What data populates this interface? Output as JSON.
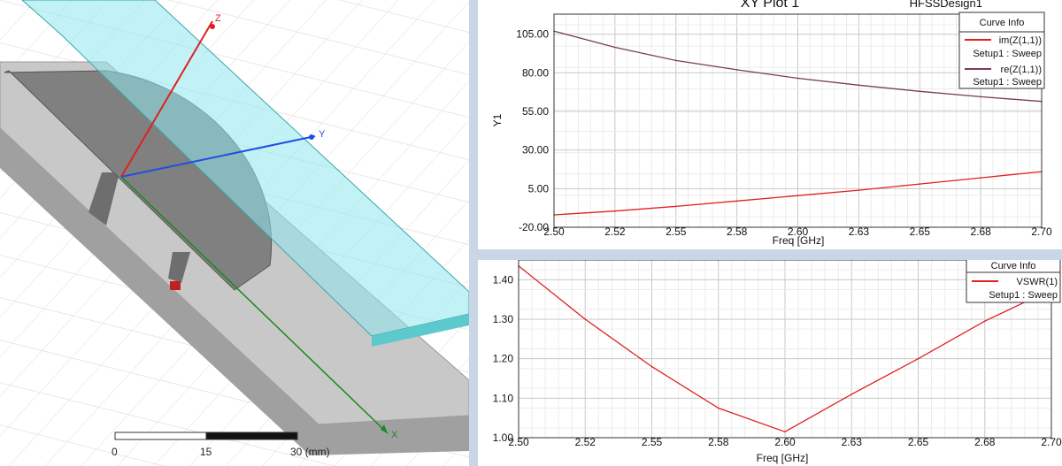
{
  "viewport": {
    "axes": {
      "x": "X",
      "y": "Y",
      "z": "Z"
    },
    "scale_bar": {
      "ticks": [
        "0",
        "15",
        "30 (mm)"
      ]
    },
    "colors": {
      "x_axis": "#1a8a1a",
      "y_axis": "#1f4fe0",
      "z_axis": "#e02020",
      "substrate": "#8fe8ec",
      "ground": "#c8c8c8",
      "patch": "#808080"
    }
  },
  "plot1": {
    "title": "XY Plot 1",
    "app_label": "HFSSDesign1",
    "legend_title": "Curve Info",
    "legend": [
      {
        "name": "im(Z(1,1))",
        "sub": "Setup1 : Sweep",
        "color": "#e02020"
      },
      {
        "name": "re(Z(1,1))",
        "sub": "Setup1 : Sweep",
        "color": "#7a3a5e"
      }
    ]
  },
  "plot2": {
    "legend_title": "Curve Info",
    "legend": [
      {
        "name": "VSWR(1)",
        "sub": "Setup1 : Sweep",
        "color": "#e02020"
      }
    ]
  },
  "chart_data": [
    {
      "type": "line",
      "title": "XY Plot 1",
      "xlabel": "Freq [GHz]",
      "ylabel": "Y1",
      "xlim": [
        2.5,
        2.7
      ],
      "ylim": [
        -20,
        118
      ],
      "xticks": [
        "2.50",
        "2.52",
        "2.55",
        "2.58",
        "2.60",
        "2.63",
        "2.65",
        "2.68",
        "2.70"
      ],
      "yticks": [
        {
          "value": 105,
          "label": "105.00"
        },
        {
          "value": 80,
          "label": "80.00"
        },
        {
          "value": 55,
          "label": "55.00"
        },
        {
          "value": 30,
          "label": "30.00"
        },
        {
          "value": 5,
          "label": "5.00"
        },
        {
          "value": -20,
          "label": "-20.00"
        }
      ],
      "grid": true,
      "legend_position": "top-right",
      "series": [
        {
          "name": "re(Z(1,1))",
          "color": "#7a3a5e",
          "x": [
            2.5,
            2.525,
            2.55,
            2.575,
            2.6,
            2.625,
            2.65,
            2.675,
            2.7
          ],
          "y": [
            107,
            96.5,
            88,
            82,
            76.5,
            72,
            68,
            64.5,
            61.5
          ]
        },
        {
          "name": "im(Z(1,1))",
          "color": "#e02020",
          "x": [
            2.5,
            2.525,
            2.55,
            2.575,
            2.6,
            2.625,
            2.65,
            2.675,
            2.7
          ],
          "y": [
            -12,
            -9.5,
            -6.5,
            -3,
            0.5,
            4,
            8,
            12,
            16
          ]
        }
      ]
    },
    {
      "type": "line",
      "xlabel": "Freq [GHz]",
      "ylabel": "",
      "xlim": [
        2.5,
        2.7
      ],
      "ylim": [
        1.0,
        1.45
      ],
      "xticks": [
        "2.50",
        "2.52",
        "2.55",
        "2.58",
        "2.60",
        "2.63",
        "2.65",
        "2.68",
        "2.70"
      ],
      "yticks": [
        {
          "value": 1.4,
          "label": "1.40"
        },
        {
          "value": 1.3,
          "label": "1.30"
        },
        {
          "value": 1.2,
          "label": "1.20"
        },
        {
          "value": 1.1,
          "label": "1.10"
        },
        {
          "value": 1.0,
          "label": "1.00"
        }
      ],
      "grid": true,
      "legend_position": "top-right",
      "series": [
        {
          "name": "VSWR(1)",
          "color": "#e02020",
          "x": [
            2.5,
            2.525,
            2.55,
            2.575,
            2.6,
            2.625,
            2.65,
            2.675,
            2.7
          ],
          "y": [
            1.435,
            1.3,
            1.18,
            1.075,
            1.015,
            1.11,
            1.2,
            1.295,
            1.375
          ]
        }
      ]
    }
  ]
}
